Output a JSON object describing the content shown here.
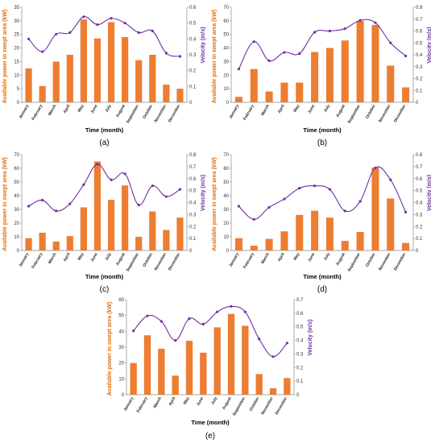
{
  "chart_data": [
    {
      "type": "bar",
      "panel_label": "(a)",
      "categories": [
        "January",
        "February",
        "March",
        "April",
        "May",
        "June",
        "July",
        "August",
        "September",
        "October",
        "November",
        "December"
      ],
      "series": [
        {
          "values": [
            12.5,
            6,
            15,
            17.5,
            30.5,
            23.5,
            29.5,
            24,
            15.5,
            17.5,
            6.5,
            5
          ]
        },
        {
          "values": [
            0.4,
            0.32,
            0.43,
            0.44,
            0.54,
            0.49,
            0.53,
            0.5,
            0.44,
            0.45,
            0.31,
            0.29
          ]
        }
      ],
      "xlabel": "Time (month)",
      "ylabel": "Available power in swept area (kW)",
      "y2label": "Velocity (m/s)",
      "ylim": [
        0,
        35
      ],
      "ylim2": [
        0,
        0.6
      ],
      "yticks": [
        0,
        5,
        10,
        15,
        20,
        25,
        30,
        35
      ],
      "y2ticks": [
        0,
        0.1,
        0.2,
        0.3,
        0.4,
        0.5,
        0.6
      ]
    },
    {
      "type": "bar",
      "panel_label": "(b)",
      "categories": [
        "January",
        "February",
        "March",
        "April",
        "May",
        "June",
        "July",
        "August",
        "September",
        "October",
        "November",
        "December"
      ],
      "series": [
        {
          "values": [
            4,
            24.5,
            8,
            14.5,
            14.5,
            37,
            40,
            45.5,
            60,
            57,
            27,
            11
          ]
        },
        {
          "values": [
            0.28,
            0.51,
            0.35,
            0.42,
            0.41,
            0.59,
            0.6,
            0.62,
            0.69,
            0.67,
            0.5,
            0.39
          ]
        }
      ],
      "xlabel": "Time (month)",
      "ylabel": "Available power in swept area (kW)",
      "y2label": "Velocity (m/s)",
      "ylim": [
        0,
        70
      ],
      "ylim2": [
        0,
        0.8
      ],
      "yticks": [
        0,
        10,
        20,
        30,
        40,
        50,
        60,
        70
      ],
      "y2ticks": [
        0,
        0.1,
        0.2,
        0.3,
        0.4,
        0.5,
        0.6,
        0.7,
        0.8
      ]
    },
    {
      "type": "bar",
      "panel_label": "(c)",
      "categories": [
        "January",
        "February",
        "March",
        "April",
        "May",
        "June",
        "July",
        "August",
        "September",
        "October",
        "November",
        "December"
      ],
      "series": [
        {
          "values": [
            9,
            13,
            6.5,
            10.5,
            31.5,
            65,
            37,
            47.5,
            10,
            28.5,
            15,
            24
          ]
        },
        {
          "values": [
            0.37,
            0.42,
            0.33,
            0.39,
            0.55,
            0.72,
            0.59,
            0.64,
            0.38,
            0.54,
            0.45,
            0.51
          ]
        }
      ],
      "xlabel": "Time (month)",
      "ylabel": "Available power in swept area (kW)",
      "y2label": "Velocity (m/s)",
      "ylim": [
        0,
        70
      ],
      "ylim2": [
        0,
        0.8
      ],
      "yticks": [
        0,
        10,
        20,
        30,
        40,
        50,
        60,
        70
      ],
      "y2ticks": [
        0,
        0.1,
        0.2,
        0.3,
        0.4,
        0.5,
        0.6,
        0.7,
        0.8
      ]
    },
    {
      "type": "bar",
      "panel_label": "(d)",
      "categories": [
        "January",
        "February",
        "March",
        "April",
        "May",
        "June",
        "July",
        "August",
        "September",
        "October",
        "November",
        "December"
      ],
      "series": [
        {
          "values": [
            9,
            3.5,
            8.5,
            14,
            26,
            29,
            24,
            7,
            13.5,
            60.5,
            38,
            5.5
          ]
        },
        {
          "values": [
            0.37,
            0.26,
            0.36,
            0.43,
            0.52,
            0.54,
            0.51,
            0.33,
            0.41,
            0.69,
            0.59,
            0.32
          ]
        }
      ],
      "xlabel": "Time (month)",
      "ylabel": "Available power in swept area (kW)",
      "y2label": "Velocity (m/s)",
      "ylim": [
        0,
        70
      ],
      "ylim2": [
        0,
        0.8
      ],
      "yticks": [
        0,
        10,
        20,
        30,
        40,
        50,
        60,
        70
      ],
      "y2ticks": [
        0,
        0.1,
        0.2,
        0.3,
        0.4,
        0.5,
        0.6,
        0.7,
        0.8
      ]
    },
    {
      "type": "bar",
      "panel_label": "(e)",
      "categories": [
        "January",
        "February",
        "March",
        "April",
        "May",
        "June",
        "July",
        "August",
        "September",
        "October",
        "November",
        "December"
      ],
      "series": [
        {
          "values": [
            20,
            37.5,
            29,
            12,
            34,
            26.5,
            42.5,
            51,
            43.5,
            13,
            4,
            10.5
          ]
        },
        {
          "values": [
            0.47,
            0.58,
            0.54,
            0.4,
            0.56,
            0.52,
            0.61,
            0.65,
            0.61,
            0.41,
            0.28,
            0.38
          ]
        }
      ],
      "xlabel": "Time (month)",
      "ylabel": "Available power in swept area (kW)",
      "y2label": "Velocity (m/s)",
      "ylim": [
        0,
        60
      ],
      "ylim2": [
        0,
        0.7
      ],
      "yticks": [
        0,
        10,
        20,
        30,
        40,
        50,
        60
      ],
      "y2ticks": [
        0,
        0.1,
        0.2,
        0.3,
        0.4,
        0.5,
        0.6,
        0.7
      ]
    }
  ],
  "colors": {
    "bar": "#ED7D31",
    "line": "#7030A0",
    "ylabel_left": "#E36C09",
    "ylabel_right": "#7030A0"
  }
}
